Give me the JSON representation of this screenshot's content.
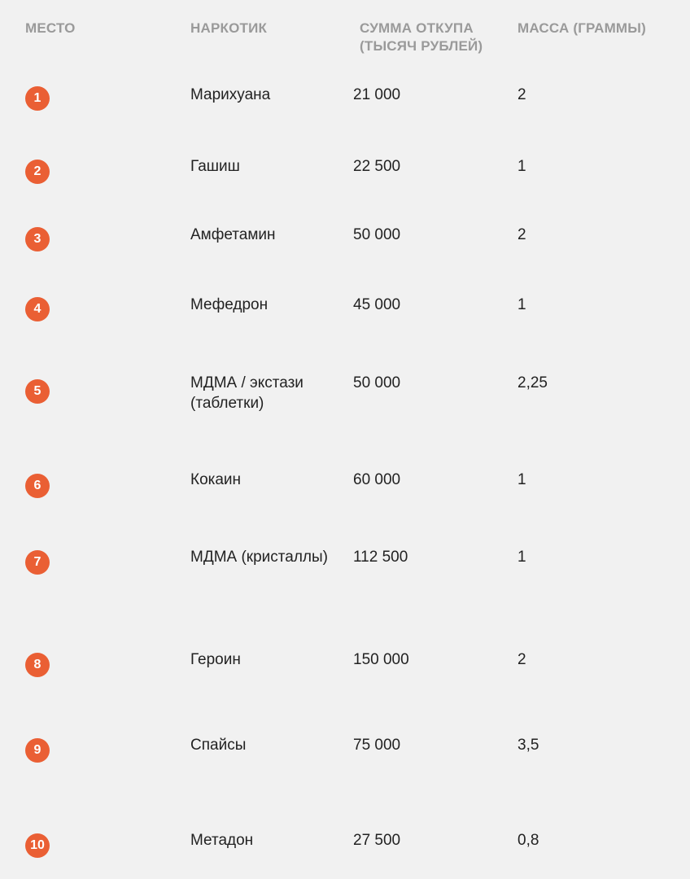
{
  "headers": {
    "place": "МЕСТО",
    "drug": "НАРКОТИК",
    "sum_line1": "СУММА ОТКУПА",
    "sum_line2": "(ТЫСЯЧ РУБЛЕЙ)",
    "mass": "МАССА (ГРАММЫ)"
  },
  "accent_color": "#ea5f34",
  "rows": [
    {
      "place": "1",
      "drug": "Марихуана",
      "sum": "21 000",
      "mass": "2"
    },
    {
      "place": "2",
      "drug": "Гашиш",
      "sum": "22 500",
      "mass": "1"
    },
    {
      "place": "3",
      "drug": "Амфетамин",
      "sum": "50 000",
      "mass": "2"
    },
    {
      "place": "4",
      "drug": "Мефедрон",
      "sum": "45 000",
      "mass": "1"
    },
    {
      "place": "5",
      "drug": "МДМА / экстази (таблетки)",
      "sum": "50 000",
      "mass": "2,25"
    },
    {
      "place": "6",
      "drug": "Кокаин",
      "sum": "60 000",
      "mass": "1"
    },
    {
      "place": "7",
      "drug": "МДМА (кристаллы)",
      "sum": "112 500",
      "mass": "1"
    },
    {
      "place": "8",
      "drug": "Героин",
      "sum": "150 000",
      "mass": "2"
    },
    {
      "place": "9",
      "drug": "Спайсы",
      "sum": "75 000",
      "mass": "3,5"
    },
    {
      "place": "10",
      "drug": "Метадон",
      "sum": "27 500",
      "mass": "0,8"
    }
  ]
}
